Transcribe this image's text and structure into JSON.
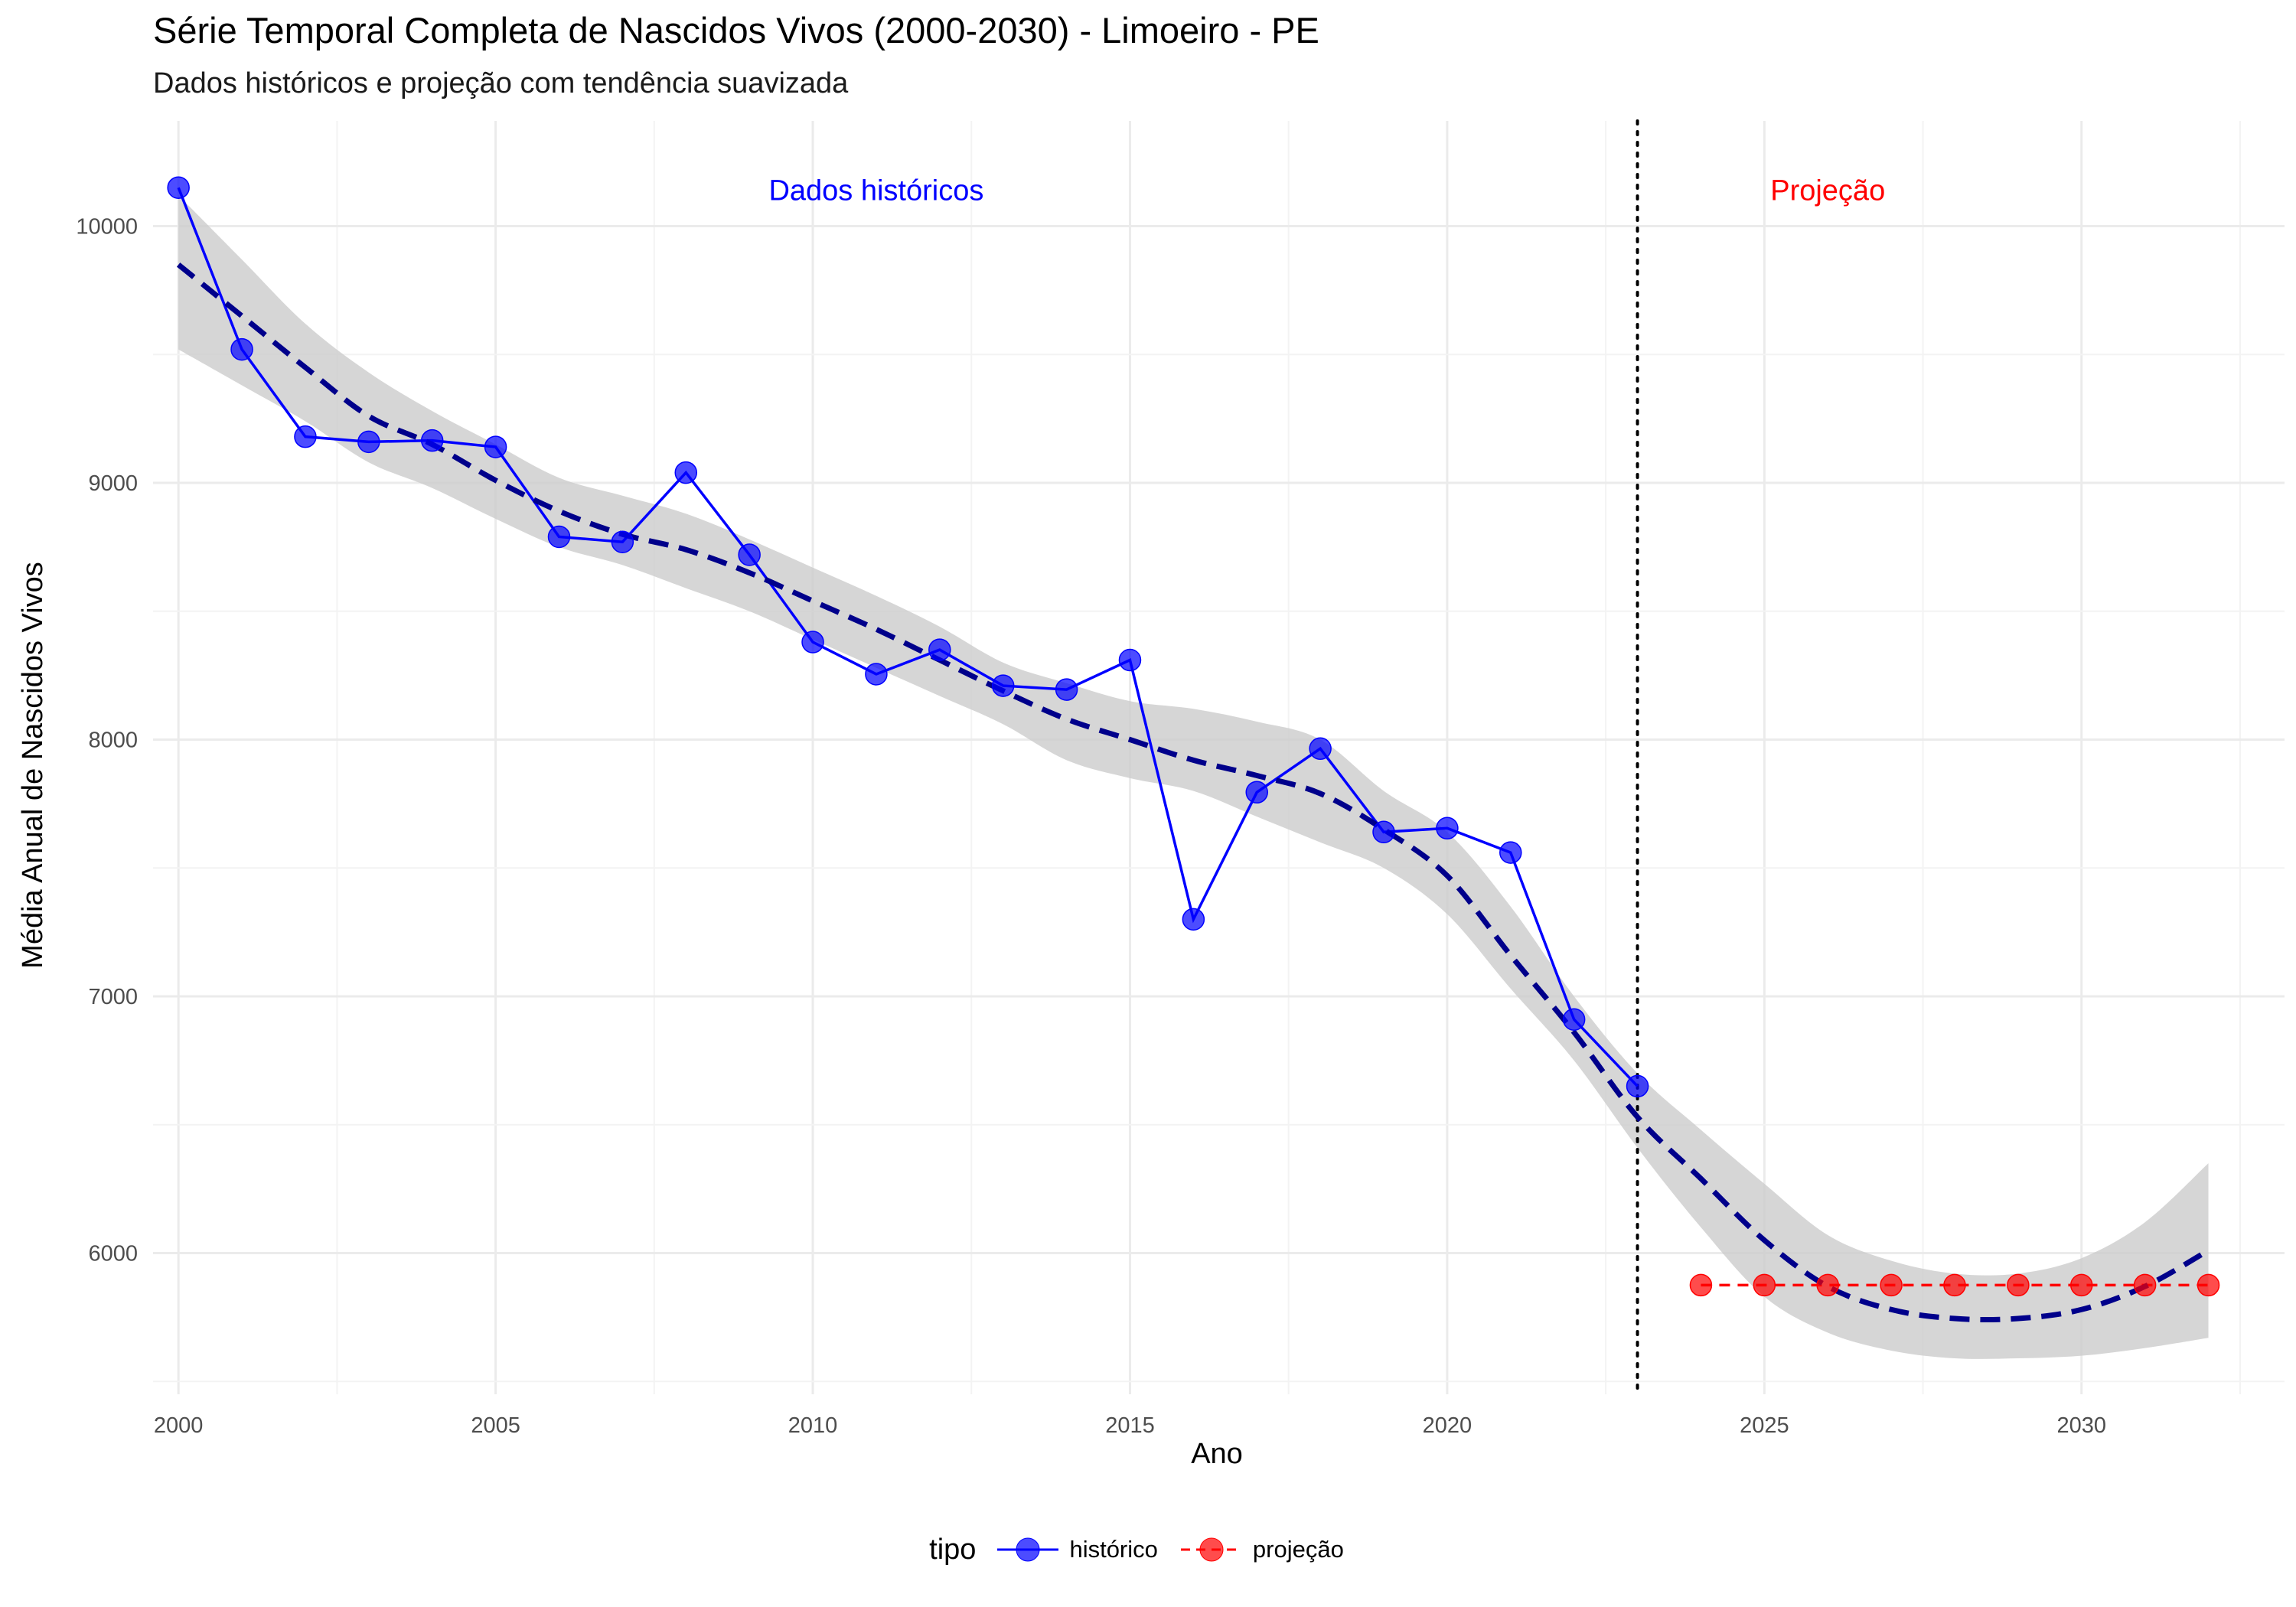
{
  "title": "Série Temporal Completa de Nascidos Vivos (2000-2030) -  Limoeiro - PE",
  "subtitle": "Dados históricos e projeção com tendência suavizada",
  "colors": {
    "historico": "#0000ff",
    "projecao": "#ff0000",
    "trend": "#00008b",
    "ribbon": "#cccccc",
    "divider": "#000000"
  },
  "chart_data": {
    "type": "line",
    "title": "Série Temporal Completa de Nascidos Vivos (2000-2030) -  Limoeiro - PE",
    "subtitle": "Dados históricos e projeção com tendência suavizada",
    "xlabel": "Ano",
    "ylabel": "Média Anual de Nascidos Vivos",
    "xlim": [
      1999.6,
      2033.2
    ],
    "ylim": [
      5450,
      10410
    ],
    "x_ticks": [
      2000,
      2005,
      2010,
      2015,
      2020,
      2025,
      2030
    ],
    "y_ticks": [
      6000,
      7000,
      8000,
      9000,
      10000
    ],
    "grid": true,
    "legend": {
      "title": "tipo",
      "position": "bottom"
    },
    "divider_x": 2023,
    "annotations": [
      {
        "text": "Dados históricos",
        "x": 2011,
        "y": 10140,
        "color": "#0000ff"
      },
      {
        "text": "Projeção",
        "x": 2026,
        "y": 10140,
        "color": "#ff0000"
      }
    ],
    "series": [
      {
        "name": "histórico",
        "color": "#0000ff",
        "line_style": "solid",
        "x": [
          2000,
          2001,
          2002,
          2003,
          2004,
          2005,
          2006,
          2007,
          2008,
          2009,
          2010,
          2011,
          2012,
          2013,
          2014,
          2015,
          2016,
          2017,
          2018,
          2019,
          2020,
          2021,
          2022,
          2023
        ],
        "y": [
          10150,
          9520,
          9180,
          9160,
          9165,
          9140,
          8790,
          8770,
          9040,
          8720,
          8380,
          8255,
          8350,
          8210,
          8195,
          8310,
          7300,
          7795,
          7965,
          7640,
          7655,
          7560,
          6910,
          6650
        ]
      },
      {
        "name": "projeção",
        "color": "#ff0000",
        "line_style": "dashed",
        "x": [
          2024,
          2025,
          2026,
          2027,
          2028,
          2029,
          2030,
          2031,
          2032
        ],
        "y": [
          5875,
          5875,
          5875,
          5875,
          5875,
          5875,
          5875,
          5875,
          5875
        ]
      }
    ],
    "trend": {
      "style": "dashed",
      "color": "#00008b",
      "x": [
        2000,
        2001,
        2002,
        2003,
        2004,
        2005,
        2006,
        2007,
        2008,
        2009,
        2010,
        2011,
        2012,
        2013,
        2014,
        2015,
        2016,
        2017,
        2018,
        2019,
        2020,
        2021,
        2022,
        2023,
        2024,
        2025,
        2026,
        2027,
        2028,
        2029,
        2030,
        2031,
        2032
      ],
      "y": [
        9850,
        9650,
        9450,
        9260,
        9150,
        9010,
        8890,
        8800,
        8740,
        8650,
        8540,
        8430,
        8310,
        8190,
        8080,
        8000,
        7920,
        7860,
        7790,
        7650,
        7470,
        7160,
        6860,
        6530,
        6290,
        6050,
        5870,
        5780,
        5745,
        5745,
        5780,
        5870,
        6010
      ],
      "upper": [
        10120,
        9870,
        9620,
        9430,
        9280,
        9150,
        9020,
        8950,
        8880,
        8780,
        8670,
        8560,
        8440,
        8300,
        8220,
        8150,
        8120,
        8070,
        8000,
        7800,
        7640,
        7350,
        7000,
        6700,
        6480,
        6270,
        6070,
        5970,
        5920,
        5920,
        5980,
        6120,
        6350
      ],
      "lower": [
        9520,
        9380,
        9240,
        9080,
        8980,
        8860,
        8750,
        8680,
        8590,
        8500,
        8390,
        8280,
        8170,
        8060,
        7920,
        7850,
        7800,
        7700,
        7600,
        7500,
        7320,
        7030,
        6750,
        6410,
        6100,
        5830,
        5690,
        5620,
        5590,
        5590,
        5600,
        5630,
        5670
      ]
    }
  }
}
